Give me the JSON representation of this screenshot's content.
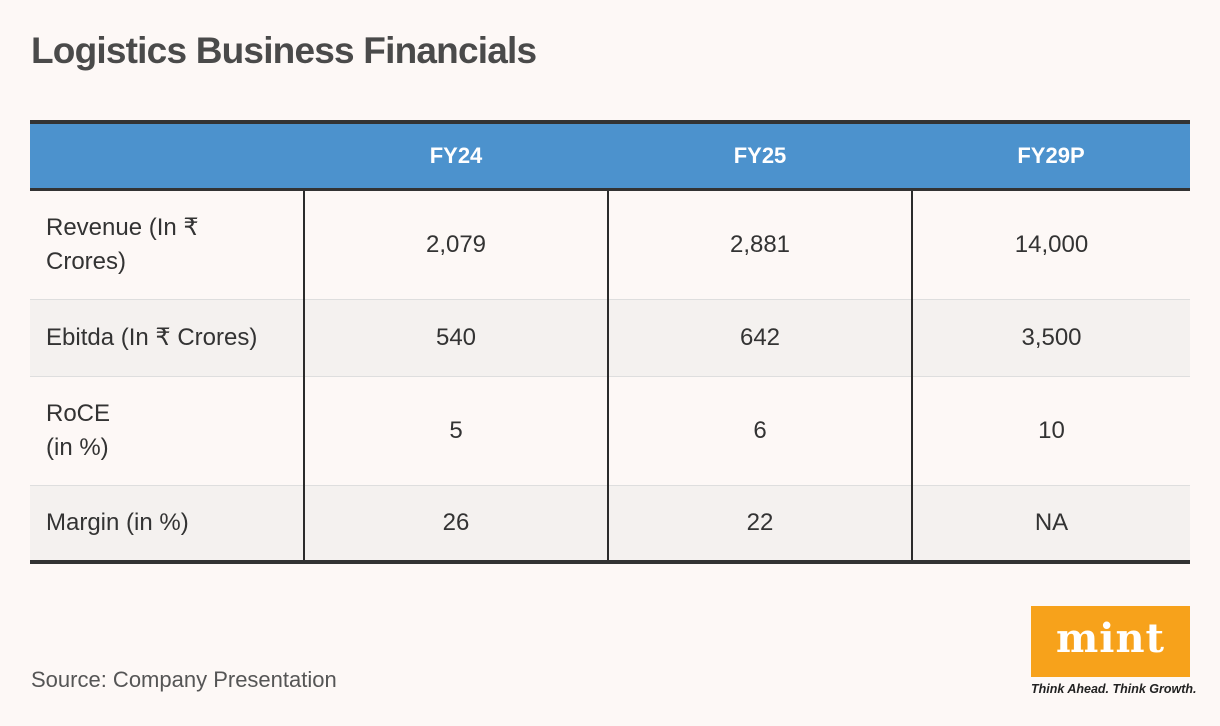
{
  "chart_data": {
    "type": "table",
    "title": "Logistics Business Financials",
    "columns": [
      "",
      "FY24",
      "FY25",
      "FY29P"
    ],
    "rows": [
      {
        "label_lines": [
          "Revenue (In ₹",
          "Crores)"
        ],
        "values": [
          "2,079",
          "2,881",
          "14,000"
        ]
      },
      {
        "label_lines": [
          "Ebitda (In ₹ Crores)"
        ],
        "values": [
          "540",
          "642",
          "3,500"
        ]
      },
      {
        "label_lines": [
          "RoCE",
          "(in %)"
        ],
        "values": [
          "5",
          "6",
          "10"
        ]
      },
      {
        "label_lines": [
          "Margin (in %)"
        ],
        "values": [
          "26",
          "22",
          "NA"
        ]
      }
    ]
  },
  "source": "Source: Company Presentation",
  "branding": {
    "logo_text": "mint",
    "tagline": "Think Ahead. Think Growth."
  },
  "colors": {
    "header_bg": "#4c92cd",
    "logo_bg": "#f7a21b",
    "background": "#fdf8f6"
  }
}
